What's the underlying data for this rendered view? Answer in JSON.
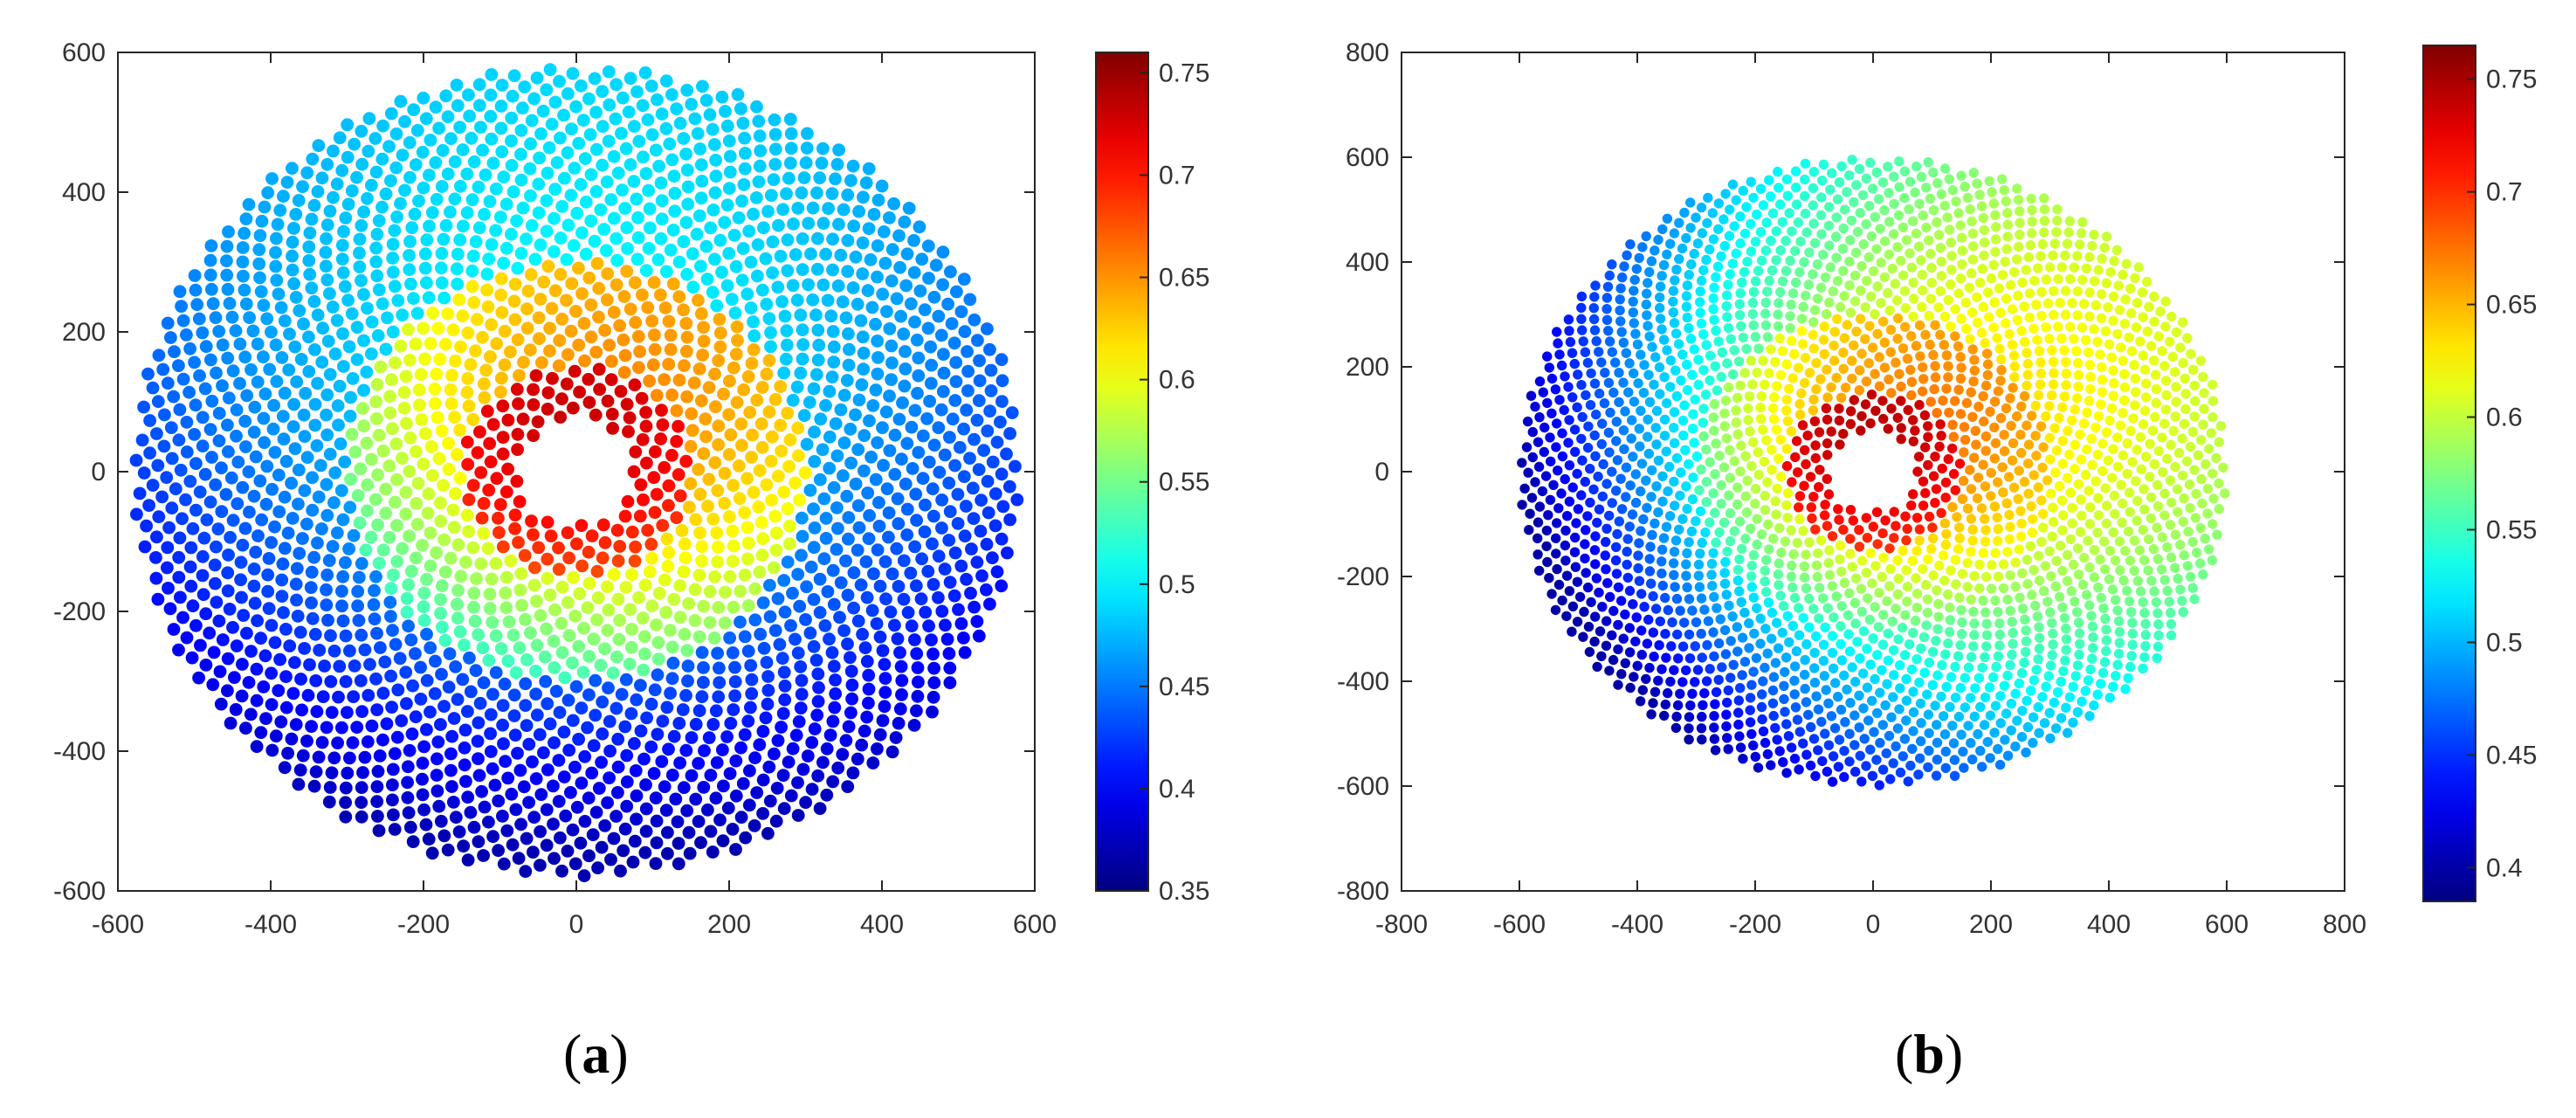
{
  "chart_data": [
    {
      "id": "a",
      "type": "scatter",
      "caption_letter": "a",
      "title": "",
      "xlabel": "",
      "ylabel": "",
      "xlim": [
        -600,
        600
      ],
      "ylim": [
        -600,
        600
      ],
      "xticks": [
        -600,
        -400,
        -200,
        0,
        200,
        400,
        600
      ],
      "yticks": [
        -600,
        -400,
        -200,
        0,
        200,
        400,
        600
      ],
      "colorbar": {
        "min": 0.35,
        "max": 0.76,
        "ticks": [
          0.35,
          0.4,
          0.45,
          0.5,
          0.55,
          0.6,
          0.65,
          0.7,
          0.75
        ],
        "colormap": "jet"
      },
      "field": {
        "center": [
          0,
          0
        ],
        "hole_radius": 75,
        "outer_radius": 580,
        "rings": [
          {
            "r_min": 75,
            "r_max": 150,
            "value_range": [
              0.68,
              0.75
            ],
            "gradient_direction_deg": 90
          },
          {
            "r_min": 150,
            "r_max": 300,
            "value_range": [
              0.53,
              0.7
            ],
            "gradient_direction_deg": 60
          },
          {
            "r_min": 300,
            "r_max": 580,
            "value_range": [
              0.37,
              0.55
            ],
            "gradient_direction_deg": 90
          }
        ]
      },
      "grid": false
    },
    {
      "id": "b",
      "type": "scatter",
      "caption_letter": "b",
      "title": "",
      "xlabel": "",
      "ylabel": "",
      "xlim": [
        -800,
        800
      ],
      "ylim": [
        -800,
        800
      ],
      "xticks": [
        -800,
        -600,
        -400,
        -200,
        0,
        200,
        400,
        600,
        800
      ],
      "yticks": [
        -800,
        -600,
        -400,
        -200,
        0,
        200,
        400,
        600,
        800
      ],
      "colorbar": {
        "min": 0.385,
        "max": 0.765,
        "ticks": [
          0.4,
          0.45,
          0.5,
          0.55,
          0.6,
          0.65,
          0.7,
          0.75
        ],
        "colormap": "jet"
      },
      "field": {
        "center": [
          0,
          0
        ],
        "hole_radius": 75,
        "outer_radius": 600,
        "rings": [
          {
            "r_min": 75,
            "r_max": 150,
            "value_range": [
              0.7,
              0.76
            ],
            "gradient_direction_deg": 90
          },
          {
            "r_min": 150,
            "r_max": 300,
            "value_range": [
              0.55,
              0.72
            ],
            "gradient_direction_deg": 45
          },
          {
            "r_min": 300,
            "r_max": 600,
            "value_range": [
              0.4,
              0.72
            ],
            "gradient_direction_deg": 30
          }
        ]
      },
      "grid": false
    }
  ]
}
